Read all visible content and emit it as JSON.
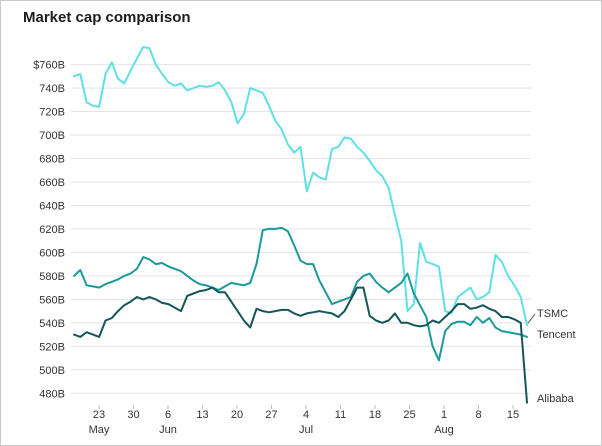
{
  "chart_data": {
    "type": "line",
    "title": "Market cap comparison",
    "y_ticks": [
      "480B",
      "500B",
      "520B",
      "540B",
      "560B",
      "580B",
      "600B",
      "620B",
      "640B",
      "660B",
      "680B",
      "700B",
      "720B",
      "740B",
      "$760B"
    ],
    "ylim": [
      470,
      775
    ],
    "x_day_ticks": [
      "23",
      "30",
      "6",
      "13",
      "20",
      "27",
      "4",
      "11",
      "18",
      "25",
      "1",
      "8",
      "15"
    ],
    "x_month_labels": [
      "May",
      "Jun",
      "Jul",
      "Aug"
    ],
    "grid": true,
    "legend": "end-of-line labels",
    "series": [
      {
        "name": "TSMC",
        "color": "#5fe0e6",
        "values": [
          750,
          752,
          728,
          725,
          724,
          752,
          762,
          748,
          744,
          755,
          765,
          775,
          774,
          760,
          752,
          745,
          742,
          744,
          738,
          740,
          742,
          741,
          742,
          745,
          738,
          728,
          710,
          718,
          740,
          738,
          736,
          725,
          712,
          705,
          692,
          685,
          690,
          652,
          668,
          664,
          662,
          688,
          690,
          698,
          697,
          690,
          685,
          678,
          670,
          665,
          655,
          632,
          610,
          550,
          556,
          608,
          592,
          590,
          588,
          550,
          548,
          562,
          566,
          570,
          560,
          562,
          566,
          598,
          592,
          580,
          572,
          562,
          538
        ]
      },
      {
        "name": "Tencent",
        "color": "#1b9a98",
        "values": [
          580,
          585,
          572,
          571,
          570,
          573,
          575,
          577,
          580,
          582,
          586,
          596,
          594,
          590,
          591,
          588,
          586,
          584,
          580,
          576,
          573,
          572,
          570,
          568,
          571,
          574,
          573,
          572,
          574,
          590,
          619,
          620,
          620,
          621,
          618,
          606,
          593,
          590,
          590,
          576,
          566,
          556,
          558,
          560,
          562,
          575,
          580,
          582,
          575,
          570,
          566,
          570,
          574,
          582,
          565,
          555,
          545,
          520,
          508,
          533,
          539,
          541,
          541,
          538,
          545,
          540,
          544,
          536,
          533,
          532,
          531,
          530,
          528
        ]
      },
      {
        "name": "Alibaba",
        "color": "#14565c",
        "values": [
          530,
          528,
          532,
          530,
          528,
          542,
          544,
          550,
          555,
          558,
          562,
          560,
          562,
          560,
          557,
          556,
          553,
          550,
          563,
          565,
          567,
          568,
          570,
          566,
          566,
          558,
          550,
          542,
          536,
          552,
          550,
          549,
          550,
          551,
          551,
          548,
          546,
          548,
          549,
          550,
          549,
          548,
          545,
          550,
          560,
          570,
          570,
          546,
          542,
          540,
          542,
          548,
          540,
          540,
          538,
          537,
          538,
          542,
          540,
          545,
          550,
          556,
          556,
          552,
          553,
          555,
          552,
          550,
          545,
          545,
          543,
          540,
          472
        ]
      }
    ]
  }
}
